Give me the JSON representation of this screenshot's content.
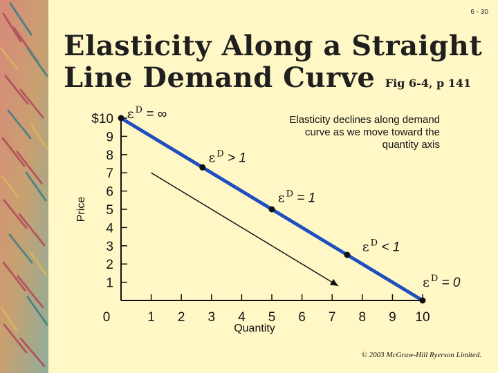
{
  "slide_number": "6 - 30",
  "title": {
    "main_line1": "Elasticity Along a Straight",
    "main_line2": "Line Demand Curve",
    "figure_ref": "Fig 6-4, p 141"
  },
  "annotation": {
    "line1": "Elasticity declines along demand",
    "line2": "curve as we move toward the",
    "line3": "quantity axis"
  },
  "copyright": "© 2003 McGraw-Hill Ryerson Limited.",
  "colors": {
    "background": "#fff7c6",
    "demand_line": "#1f4fbf",
    "arrow": "#111111"
  },
  "chart_data": {
    "type": "line",
    "ylabel": "Price",
    "xlabel": "Quantity",
    "xlim": [
      0,
      10
    ],
    "ylim": [
      0,
      10
    ],
    "x_ticks": [
      "0",
      "1",
      "2",
      "3",
      "4",
      "5",
      "6",
      "7",
      "8",
      "9",
      "10"
    ],
    "y_ticks": [
      "1",
      "2",
      "3",
      "4",
      "5",
      "6",
      "7",
      "8",
      "9",
      "$10"
    ],
    "series": [
      {
        "points": [
          [
            0,
            10
          ],
          [
            10,
            0
          ]
        ]
      }
    ],
    "markers": [
      [
        0,
        10
      ],
      [
        2.7,
        7.3
      ],
      [
        5,
        5
      ],
      [
        7.5,
        2.5
      ],
      [
        10,
        0
      ]
    ],
    "arrow": {
      "from": [
        1,
        7
      ],
      "to": [
        7.2,
        0.8
      ]
    },
    "elasticity_labels": [
      {
        "eps": "ε",
        "sup": "D",
        "rel": "= ∞",
        "x": 0.2,
        "y": 10
      },
      {
        "eps": "ε",
        "sup": "D",
        "rel": "> 1",
        "x": 2.9,
        "y": 7.6
      },
      {
        "eps": "ε",
        "sup": "D",
        "rel": "= 1",
        "x": 5.2,
        "y": 5.4
      },
      {
        "eps": "ε",
        "sup": "D",
        "rel": "< 1",
        "x": 8.0,
        "y": 2.7
      },
      {
        "eps": "ε",
        "sup": "D",
        "rel": "= 0",
        "x": 10.0,
        "y": 0.75
      }
    ]
  }
}
